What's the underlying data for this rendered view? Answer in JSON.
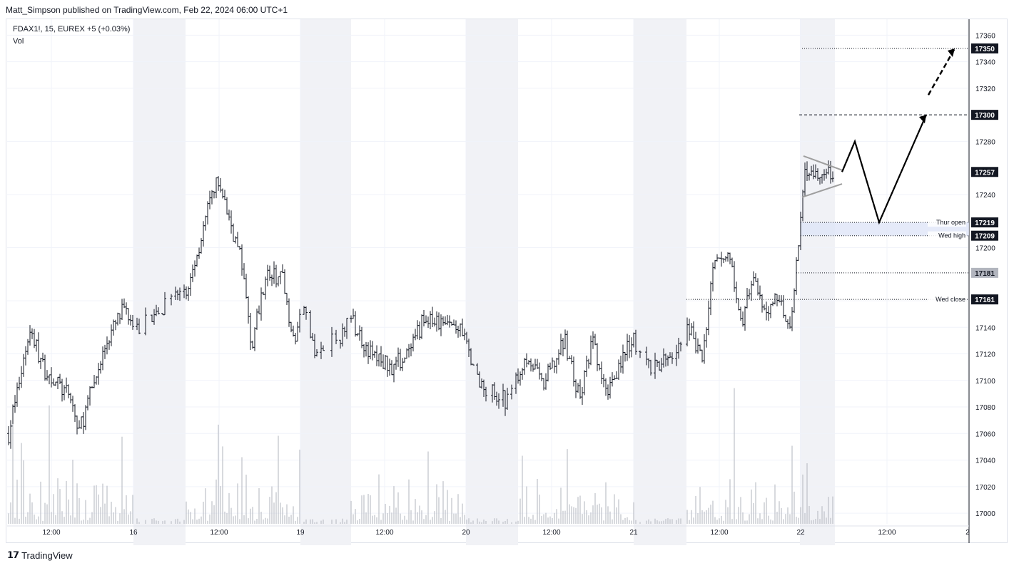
{
  "header": {
    "publisher": "Matt_Simpson published on TradingView.com, Feb 22, 2024 06:00 UTC+1"
  },
  "legend": {
    "symbol": "FDAX1!, 15, EUREX",
    "change": "+5 (+0.03%)",
    "volume_label": "Vol"
  },
  "footer": {
    "brand": "TradingView",
    "logo": "tradingview-logo-icon"
  },
  "colors": {
    "candle": "#131722",
    "volume": "#b2b5be",
    "session_shade": "#f1f2f6",
    "grid": "#f0f3fa",
    "zone": "#dfe5f7",
    "arrow": "#000000",
    "wedge": "#9e9e9e"
  },
  "chart_data": {
    "type": "ohlc",
    "xlabel": "",
    "ylabel": "",
    "ylim": [
      16992,
      17372
    ],
    "y_ticks": [
      17000,
      17020,
      17040,
      17060,
      17080,
      17100,
      17120,
      17140,
      17160,
      17200,
      17240,
      17280,
      17320,
      17340,
      17360
    ],
    "x_ticks": [
      "12:00",
      "16",
      "12:00",
      "19",
      "12:00",
      "20",
      "12:00",
      "21",
      "12:00",
      "22",
      "12:00",
      "2"
    ],
    "price_labels": [
      {
        "value": 17350,
        "label": "17350",
        "style": "dark"
      },
      {
        "value": 17300,
        "label": "17300",
        "style": "dark"
      },
      {
        "value": 17257,
        "label": "17257",
        "style": "dark"
      },
      {
        "value": 17219,
        "label": "17219",
        "style": "dark",
        "annotation": "Thur open"
      },
      {
        "value": 17209,
        "label": "17209",
        "style": "dark",
        "annotation": "Wed high"
      },
      {
        "value": 17181,
        "label": "17181",
        "style": "grey"
      },
      {
        "value": 17161,
        "label": "17161",
        "style": "dark",
        "annotation": "Wed close"
      }
    ],
    "key_points": {
      "start_price": 17060,
      "day16_high": 17257,
      "day20_low": 17075,
      "day21_high": 17210,
      "gap_open": 17219,
      "current": 17257
    },
    "projection": [
      17257,
      17280,
      17219,
      17300,
      17350
    ]
  }
}
